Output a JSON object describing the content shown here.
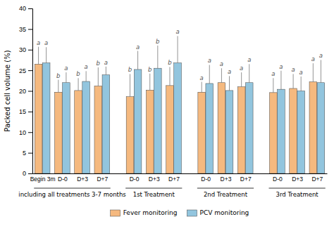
{
  "chart_data": {
    "type": "bar",
    "y_label": "Packed cell volume (%)",
    "category_groups": [
      {
        "label": "including all treatments 3-7 months",
        "categories": [
          "Begin 3m",
          "D-0",
          "D+3",
          "D+7"
        ]
      },
      {
        "label": "1st Treatment",
        "categories": [
          "D-0",
          "D+3",
          "D+7"
        ]
      },
      {
        "label": "2nd Treatment",
        "categories": [
          "D-0",
          "D+3",
          "D+7"
        ]
      },
      {
        "label": "3rd Treatment",
        "categories": [
          "D-0",
          "D+3",
          "D+7"
        ]
      }
    ],
    "series": [
      {
        "name": "Fever monitoring",
        "color": "#F5B97F",
        "values": [
          26.5,
          19.7,
          20.1,
          21.2,
          18.6,
          20.2,
          21.3,
          19.7,
          22.0,
          21.0,
          19.6,
          20.6,
          22.2
        ],
        "errors": [
          4.2,
          3.0,
          3.0,
          4.5,
          5.5,
          4.0,
          4.5,
          2.5,
          3.5,
          3.5,
          3.5,
          3.5,
          4.5
        ],
        "annotations": [
          "a",
          "b",
          "b",
          "b",
          "b",
          "b",
          "b",
          "a",
          "a",
          "a",
          "a",
          "a",
          "a"
        ]
      },
      {
        "name": "PCV monitoring",
        "color": "#92C5DE",
        "values": [
          26.8,
          22.0,
          22.3,
          23.9,
          25.2,
          25.5,
          26.8,
          21.8,
          20.1,
          22.0,
          20.4,
          20.0,
          22.0
        ],
        "errors": [
          3.8,
          2.5,
          2.5,
          2.0,
          4.5,
          5.5,
          6.5,
          4.5,
          3.5,
          4.5,
          4.5,
          3.5,
          5.5
        ],
        "annotations": [
          "a",
          "a",
          "a",
          "a",
          "a",
          "b",
          "a",
          "a",
          "a",
          "a",
          "a",
          "a",
          "a"
        ]
      }
    ],
    "ylim": [
      0,
      40
    ],
    "yticks": [
      0,
      5,
      10,
      15,
      20,
      25,
      30,
      35,
      40
    ],
    "grid": false,
    "legend": "bottom"
  }
}
